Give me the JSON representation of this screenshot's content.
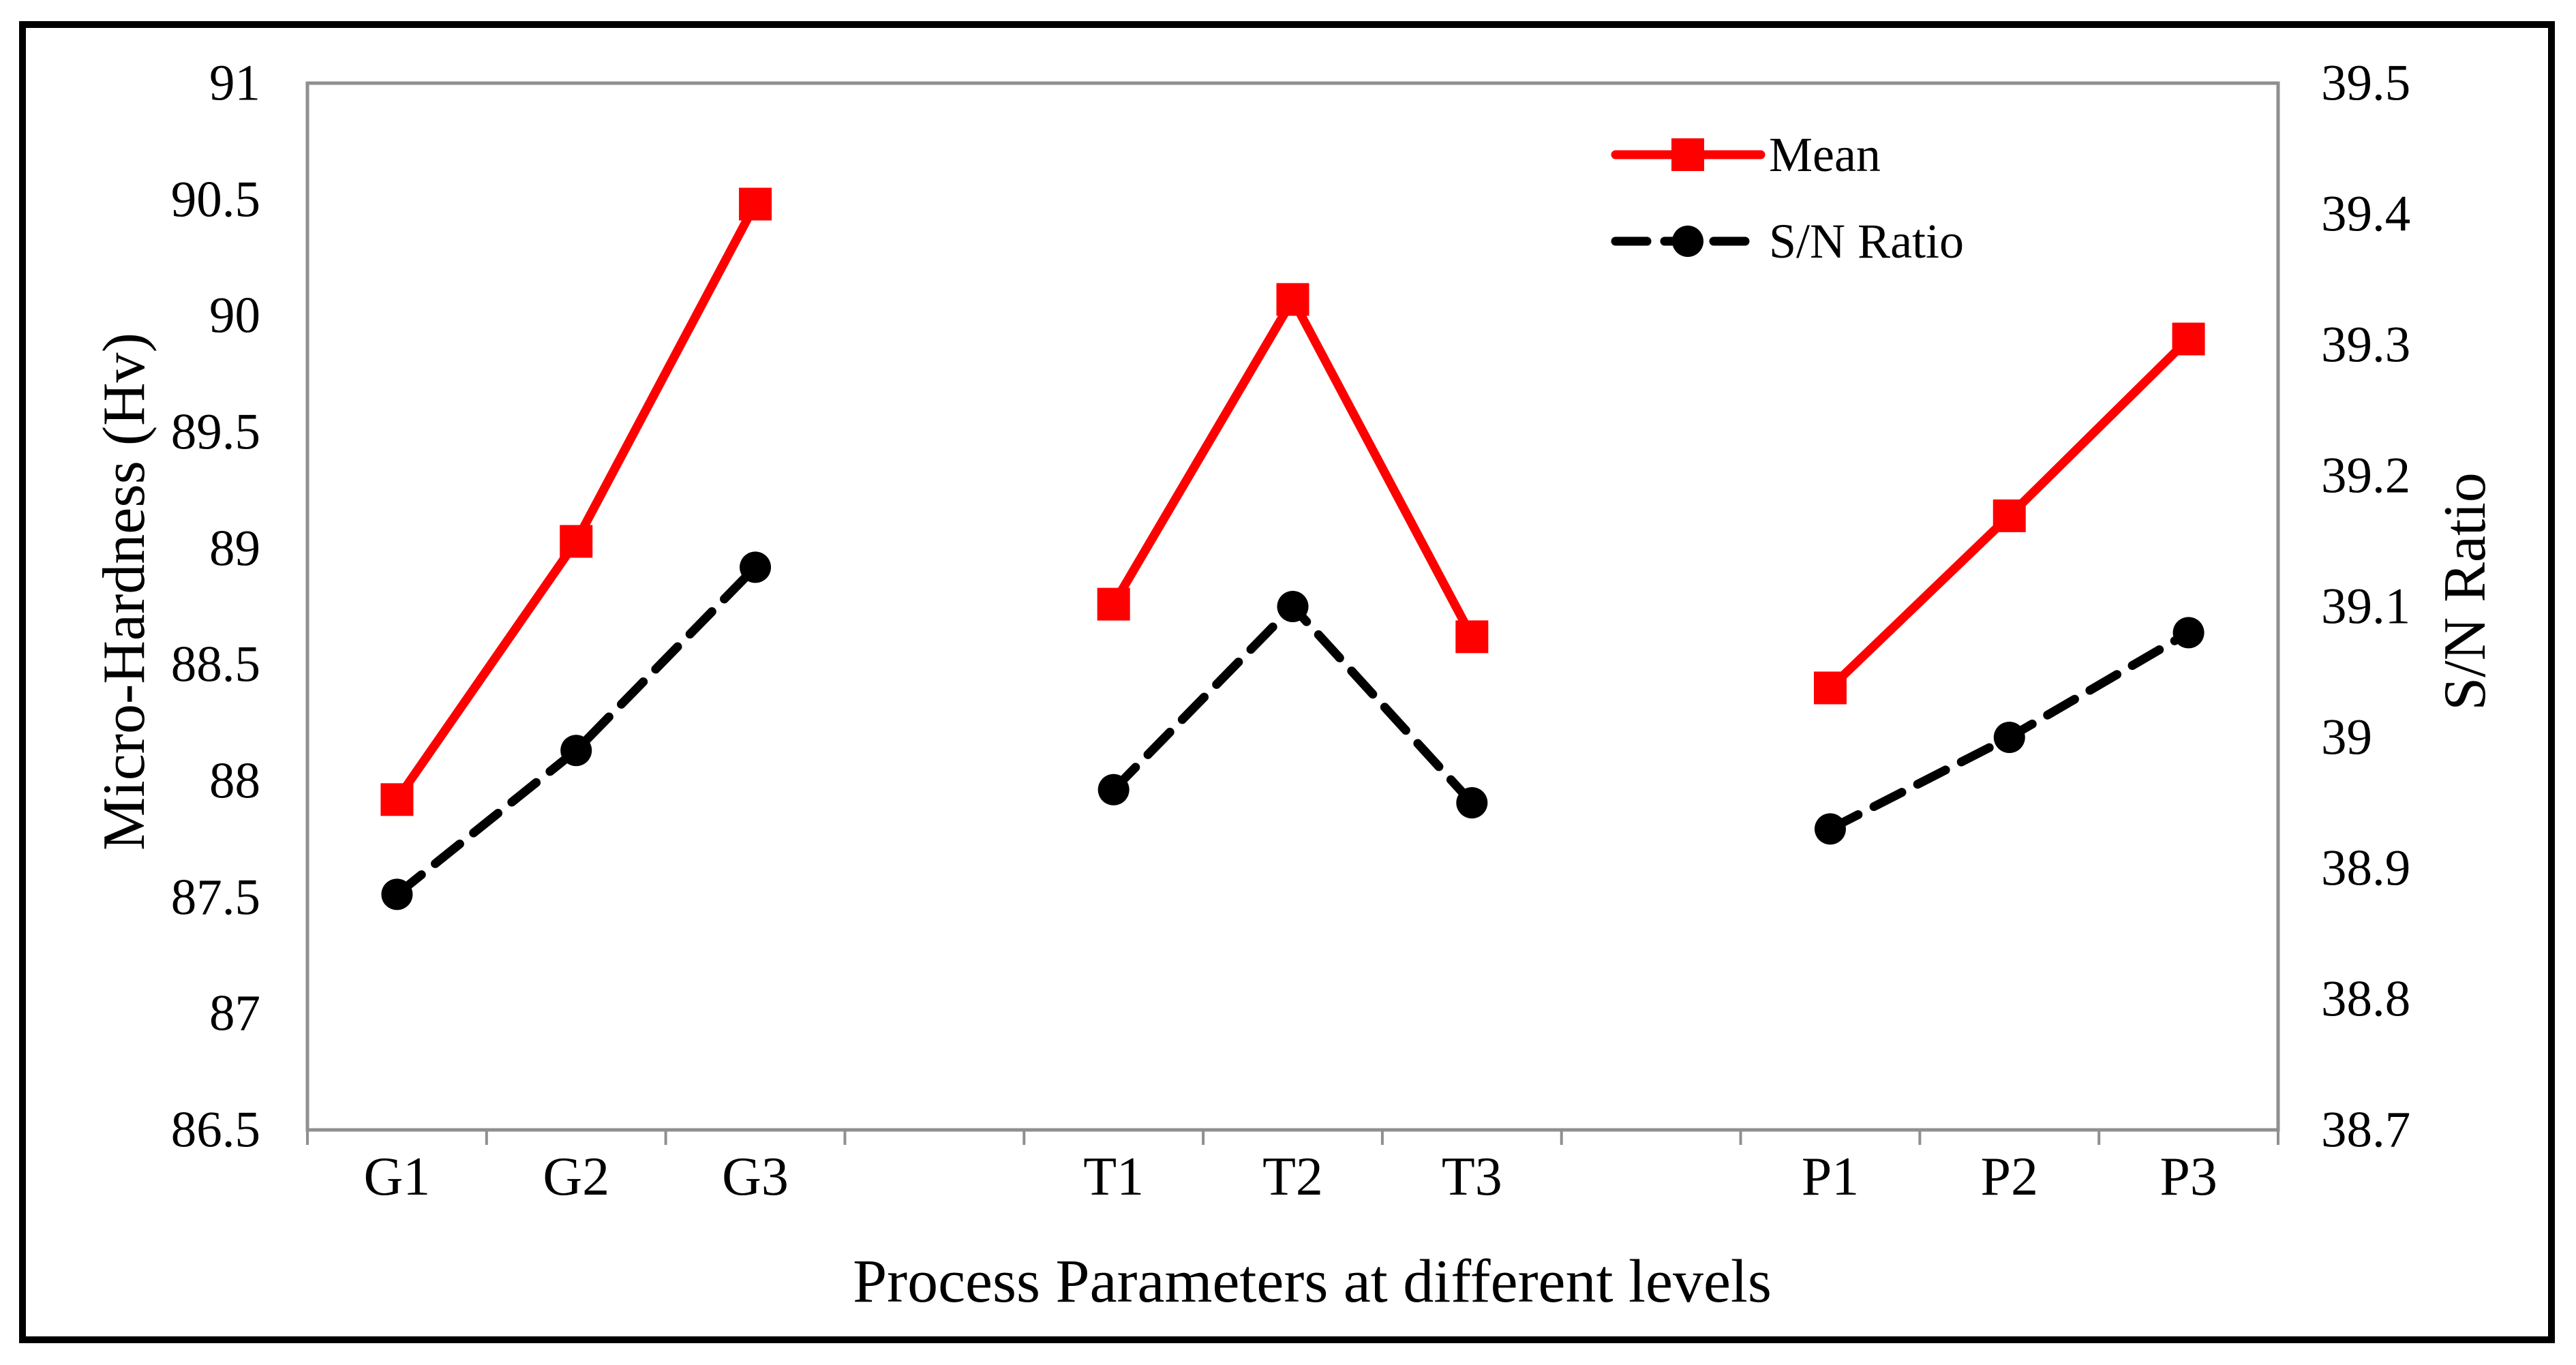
{
  "figure": {
    "background": "#ffffff",
    "outer_border_color": "#000000",
    "plot_border_color": "#8f8f8f"
  },
  "chart_data": {
    "type": "line",
    "title": "",
    "xlabel": "Process Parameters at different levels",
    "ylabel_left": "Micro-Hardness (Hv)",
    "ylabel_right": "S/N Ratio",
    "categories": [
      "G1",
      "G2",
      "G3",
      "",
      "T1",
      "T2",
      "T3",
      "",
      "P1",
      "P2",
      "P3"
    ],
    "left_axis": {
      "min": 86.5,
      "max": 91,
      "step": 0.5,
      "tick_labels": [
        "91",
        "90.5",
        "90",
        "89.5",
        "89",
        "88.5",
        "88",
        "87.5",
        "87",
        "86.5"
      ]
    },
    "right_axis": {
      "min": 38.7,
      "max": 39.5,
      "step": 0.1,
      "tick_labels": [
        "39.5",
        "39.4",
        "39.3",
        "39.2",
        "39.1",
        "39",
        "38.9",
        "38.8",
        "38.7"
      ]
    },
    "series": [
      {
        "name": "Mean",
        "axis": "left",
        "color": "#fe0000",
        "line_style": "solid",
        "marker": "square",
        "values": [
          87.92,
          89.03,
          90.48,
          null,
          88.76,
          90.07,
          88.62,
          null,
          88.4,
          89.14,
          89.9
        ]
      },
      {
        "name": "S/N Ratio",
        "axis": "right",
        "color": "#000000",
        "line_style": "dashed",
        "marker": "circle",
        "values": [
          38.88,
          38.99,
          39.13,
          null,
          38.96,
          39.1,
          38.95,
          null,
          38.93,
          39.0,
          39.08
        ]
      }
    ],
    "legend": {
      "position": "top-right-inside",
      "entries": [
        "Mean",
        "S/N Ratio"
      ]
    },
    "grid": false
  }
}
